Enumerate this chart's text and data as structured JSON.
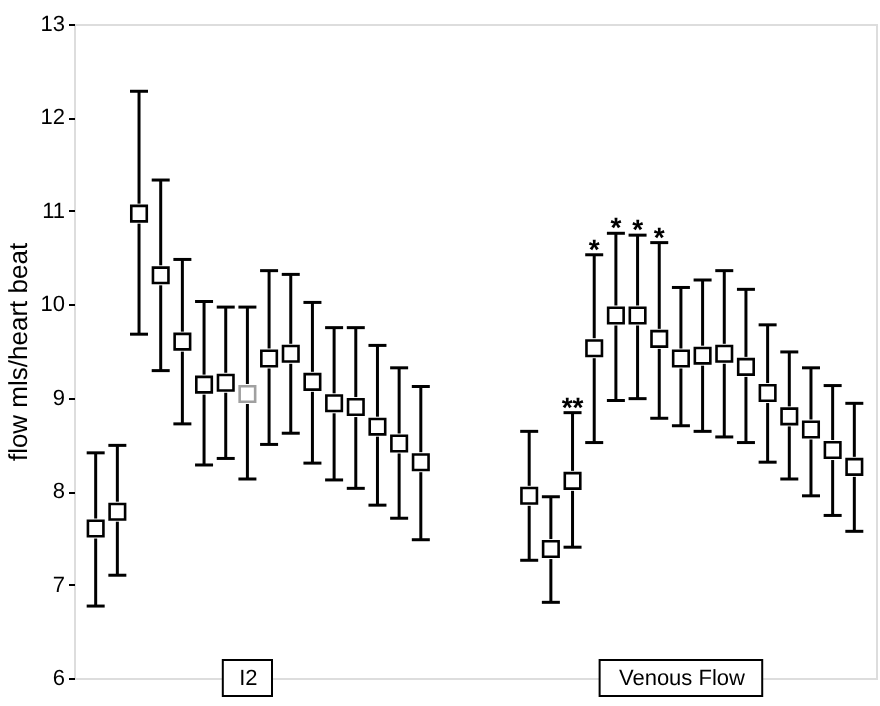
{
  "chart_data": {
    "type": "scatter",
    "ylabel": "flow mls/heart beat",
    "ylim": [
      6,
      13
    ],
    "yticks": [
      6,
      7,
      8,
      9,
      10,
      11,
      12,
      13
    ],
    "marker": "square",
    "grid": false,
    "categories": [
      null,
      null,
      null,
      null,
      null,
      null,
      null,
      "I2",
      null,
      null,
      null,
      null,
      null,
      null,
      null,
      null,
      null,
      null,
      null,
      null,
      null,
      null,
      null,
      null,
      null,
      null,
      null,
      "Venous Flow",
      null,
      null,
      null,
      null,
      null,
      null,
      null,
      null
    ],
    "series": [
      {
        "color": "#000000",
        "colors": [
          "#000000",
          "#000000",
          "#000000",
          "#000000",
          "#000000",
          "#000000",
          "#000000",
          "#a0a0a0",
          "#000000",
          "#000000",
          "#000000",
          "#000000",
          "#000000",
          "#000000",
          "#000000",
          "#000000",
          null,
          null,
          null,
          null,
          null,
          null,
          null,
          null,
          null,
          null,
          null,
          null,
          null,
          null,
          null,
          null,
          null,
          null,
          null,
          null
        ],
        "values": [
          7.6,
          7.78,
          10.97,
          10.31,
          9.6,
          9.14,
          9.16,
          9.04,
          9.42,
          9.47,
          9.17,
          8.94,
          8.9,
          8.69,
          8.51,
          8.31,
          null,
          null,
          null,
          null,
          null,
          null,
          null,
          null,
          null,
          null,
          null,
          null,
          null,
          null,
          null,
          null,
          null,
          null,
          null,
          null
        ],
        "errors": [
          [
            6.77,
            8.41
          ],
          [
            7.1,
            8.49
          ],
          [
            9.68,
            12.28
          ],
          [
            9.29,
            11.33
          ],
          [
            8.72,
            10.48
          ],
          [
            8.28,
            10.03
          ],
          [
            8.35,
            9.97
          ],
          [
            8.13,
            9.97
          ],
          [
            8.5,
            10.36
          ],
          [
            8.62,
            10.32
          ],
          [
            8.3,
            10.02
          ],
          [
            8.12,
            9.75
          ],
          [
            8.03,
            9.75
          ],
          [
            7.85,
            9.56
          ],
          [
            7.71,
            9.32
          ],
          [
            7.48,
            9.12
          ],
          null,
          null,
          null,
          null,
          null,
          null,
          null,
          null,
          null,
          null,
          null,
          null,
          null,
          null,
          null,
          null,
          null,
          null,
          null,
          null
        ]
      },
      {
        "color": "#000000",
        "values": [
          null,
          null,
          null,
          null,
          null,
          null,
          null,
          null,
          null,
          null,
          null,
          null,
          null,
          null,
          null,
          null,
          null,
          null,
          null,
          null,
          7.95,
          7.38,
          8.11,
          9.53,
          9.88,
          9.88,
          9.63,
          9.42,
          9.45,
          9.47,
          9.33,
          9.05,
          8.8,
          8.66,
          8.44,
          8.26
        ],
        "errors": [
          null,
          null,
          null,
          null,
          null,
          null,
          null,
          null,
          null,
          null,
          null,
          null,
          null,
          null,
          null,
          null,
          null,
          null,
          null,
          null,
          [
            7.26,
            8.64
          ],
          [
            6.81,
            7.94
          ],
          [
            7.4,
            8.84
          ],
          [
            8.52,
            10.53
          ],
          [
            8.97,
            10.76
          ],
          [
            8.99,
            10.74
          ],
          [
            8.78,
            10.66
          ],
          [
            8.7,
            10.18
          ],
          [
            8.64,
            10.26
          ],
          [
            8.58,
            10.36
          ],
          [
            8.52,
            10.16
          ],
          [
            8.31,
            9.78
          ],
          [
            8.13,
            9.49
          ],
          [
            7.95,
            9.32
          ],
          [
            7.74,
            9.13
          ],
          [
            7.57,
            8.94
          ]
        ],
        "value_labels": [
          null,
          null,
          null,
          null,
          null,
          null,
          null,
          null,
          null,
          null,
          null,
          null,
          null,
          null,
          null,
          null,
          null,
          null,
          null,
          null,
          null,
          null,
          "**",
          "*",
          "*",
          "*",
          "*",
          null,
          null,
          null,
          null,
          null,
          null,
          null,
          null,
          null
        ]
      }
    ]
  }
}
